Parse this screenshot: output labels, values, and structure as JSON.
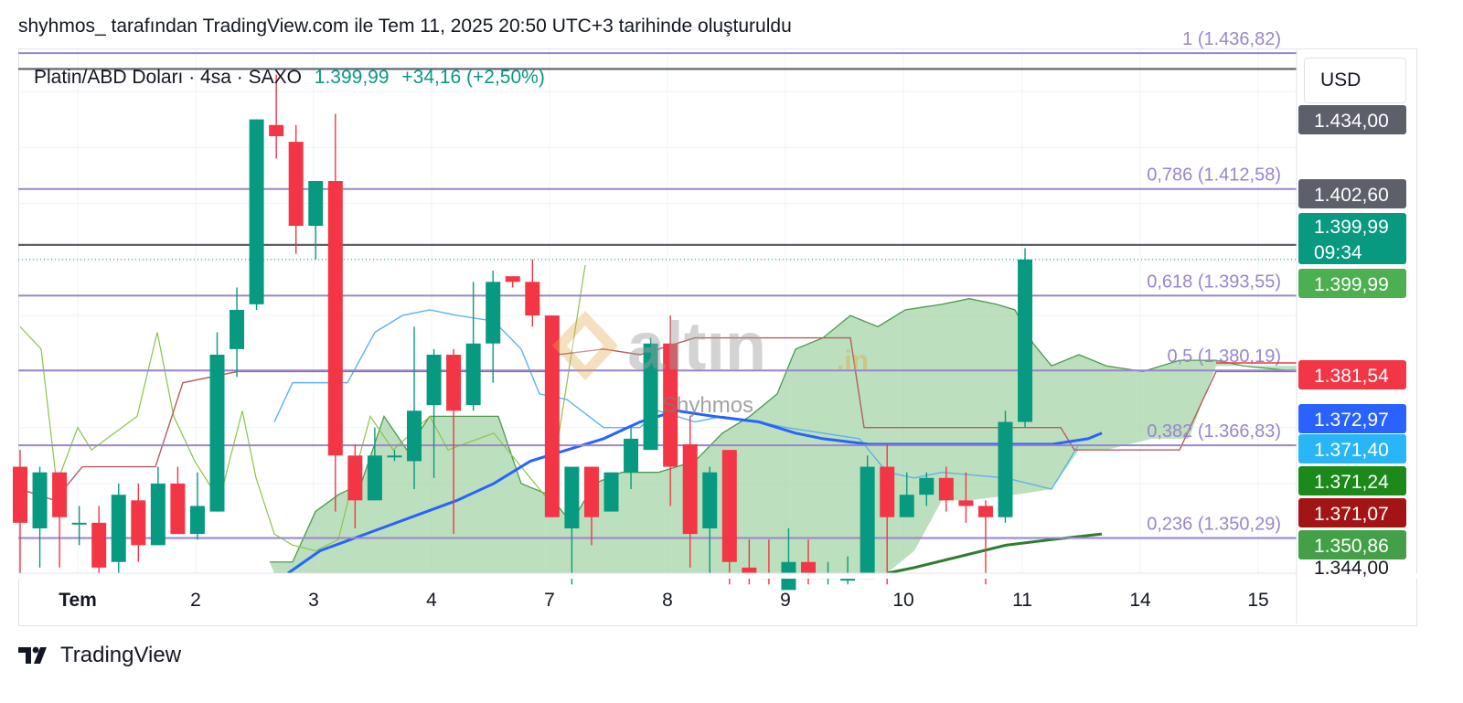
{
  "caption": "shyhmos_ tarafından TradingView.com ile Tem 11, 2025 20:50 UTC+3 tarihinde oluşturuldu",
  "legend": {
    "symbol": "Platin/ABD Doları · 4sa · SAXO",
    "last": "1.399,99",
    "change": "+34,16 (+2,50%)"
  },
  "currency_button": "USD",
  "brand": {
    "name": "TradingView",
    "logo_icon": "tradingview-logo-icon"
  },
  "watermark": {
    "text": "altın",
    "suffix": ".in",
    "author": "Shyhmos",
    "icon": "altin-logo-icon"
  },
  "colors": {
    "up": "#089981",
    "down": "#f23645",
    "fib": "#9a85cc",
    "baseline": "#2962ff",
    "ema": "#2e7d32",
    "cloud": "#a5d6a7",
    "tenkan": "#5fb2e8",
    "kijun": "#b05f5f",
    "grid": "#f0f3fa"
  },
  "chart_data": {
    "type": "candlestick",
    "symbol": "Platin/ABD Doları",
    "interval": "4sa",
    "exchange": "SAXO",
    "ylim": [
      1344.0,
      1437.5
    ],
    "x_ticks": [
      "Tem",
      "2",
      "3",
      "4",
      "7",
      "8",
      "9",
      "10",
      "11",
      "14",
      "15"
    ],
    "fib_levels": [
      {
        "label": "1 (1.436,82)",
        "value": 1436.82
      },
      {
        "label": "0,786 (1.412,58)",
        "value": 1412.58
      },
      {
        "label": "0,618 (1.393,55)",
        "value": 1393.55
      },
      {
        "label": "0,5 (1.380,19)",
        "value": 1380.19
      },
      {
        "label": "0,382 (1.366,83)",
        "value": 1366.83
      },
      {
        "label": "0,236 (1.350,29)",
        "value": 1350.29
      }
    ],
    "horizontal_lines": [
      1434.0,
      1402.6
    ],
    "price_scale_labels": [
      {
        "text": "1.434,00",
        "value": 1434.0,
        "color": "#5d606b"
      },
      {
        "text": "1.402,60",
        "value": 1402.6,
        "color": "#5d606b"
      },
      {
        "text": "1.399,99",
        "value": 1399.99,
        "color": "#089981",
        "countdown": "09:34"
      },
      {
        "text": "1.399,99",
        "value": 1399.99,
        "color": "#4caf50"
      },
      {
        "text": "1.381,54",
        "value": 1381.54,
        "color": "#f23645"
      },
      {
        "text": "1.372,97",
        "value": 1372.97,
        "color": "#2962ff"
      },
      {
        "text": "1.371,40",
        "value": 1371.4,
        "color": "#29b6f6"
      },
      {
        "text": "1.371,24",
        "value": 1371.24,
        "color": "#1b8a1b"
      },
      {
        "text": "1.371,07",
        "value": 1371.07,
        "color": "#a31515"
      },
      {
        "text": "1.350,86",
        "value": 1350.86,
        "color": "#43a047"
      },
      {
        "text": "1.344,00",
        "value": 1344.0,
        "color": "#ffffff"
      }
    ],
    "candles": [
      [
        1363,
        1353,
        1366,
        1343
      ],
      [
        1352,
        1362,
        1363,
        1345
      ],
      [
        1362,
        1354,
        1362,
        1345
      ],
      [
        1353,
        1353,
        1356,
        1349
      ],
      [
        1353,
        1345,
        1356,
        1343
      ],
      [
        1346,
        1358,
        1360,
        1344
      ],
      [
        1357,
        1349,
        1360,
        1346
      ],
      [
        1349,
        1360,
        1363,
        1349
      ],
      [
        1360,
        1351,
        1363,
        1351
      ],
      [
        1351,
        1356,
        1362,
        1350
      ],
      [
        1355,
        1383,
        1387,
        1355
      ],
      [
        1384,
        1391,
        1395,
        1379
      ],
      [
        1392,
        1425,
        1425,
        1391
      ],
      [
        1424,
        1422,
        1433,
        1418
      ],
      [
        1421,
        1406,
        1424,
        1401
      ],
      [
        1406,
        1414,
        1414,
        1400
      ],
      [
        1414,
        1365,
        1426,
        1355
      ],
      [
        1365,
        1357,
        1367,
        1352
      ],
      [
        1357,
        1365,
        1370,
        1357
      ],
      [
        1365,
        1365,
        1366,
        1364
      ],
      [
        1364,
        1373,
        1388,
        1359
      ],
      [
        1374,
        1383,
        1384,
        1361
      ],
      [
        1383,
        1373,
        1384,
        1351
      ],
      [
        1374,
        1385,
        1396,
        1373
      ],
      [
        1385,
        1396,
        1398,
        1378
      ],
      [
        1397,
        1396,
        1397,
        1395
      ],
      [
        1396,
        1390,
        1400,
        1388
      ],
      [
        1390,
        1354,
        1390,
        1354
      ],
      [
        1352,
        1363,
        1363,
        1342
      ],
      [
        1363,
        1354,
        1363,
        1349
      ],
      [
        1355,
        1362,
        1362,
        1355
      ],
      [
        1362,
        1368,
        1370,
        1359
      ],
      [
        1366,
        1385,
        1386,
        1366
      ],
      [
        1385,
        1363,
        1390,
        1356
      ],
      [
        1367,
        1351,
        1372,
        1345
      ],
      [
        1352,
        1362,
        1363,
        1344
      ],
      [
        1366,
        1346,
        1366,
        1342
      ],
      [
        1345,
        1344,
        1350,
        1340
      ],
      [
        1344,
        1343,
        1350,
        1339
      ],
      [
        1341,
        1346,
        1352,
        1340
      ],
      [
        1346,
        1343,
        1350,
        1342
      ],
      [
        1343,
        1344,
        1346,
        1342
      ],
      [
        1343,
        1343,
        1347,
        1340
      ],
      [
        1343,
        1363,
        1365,
        1343
      ],
      [
        1363,
        1354,
        1367,
        1340
      ],
      [
        1354,
        1358,
        1362,
        1354
      ],
      [
        1358,
        1361,
        1362,
        1356
      ],
      [
        1361,
        1357,
        1363,
        1355
      ],
      [
        1357,
        1356,
        1362,
        1353
      ],
      [
        1356,
        1354,
        1357,
        1341
      ],
      [
        1354,
        1371,
        1373,
        1353
      ],
      [
        1371,
        1399.99,
        1402,
        1370
      ]
    ]
  }
}
